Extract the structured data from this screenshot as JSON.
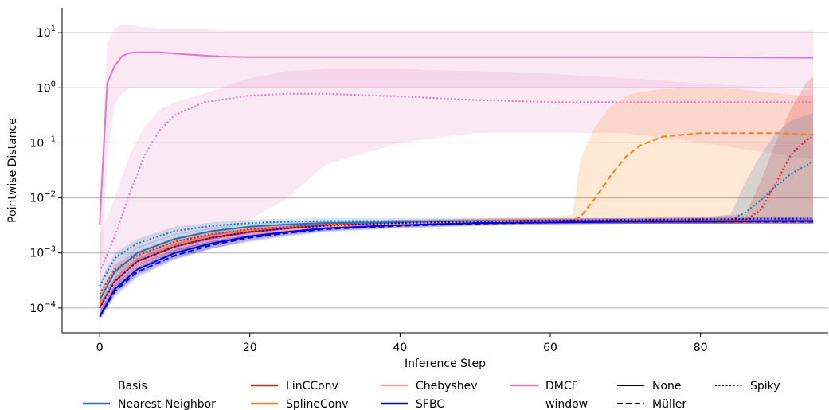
{
  "chart_data": {
    "type": "line",
    "xlabel": "Inference Step",
    "ylabel": "Pointwise Distance",
    "xlim": [
      -5,
      97
    ],
    "ylim_log10": [
      -4.45,
      1.45
    ],
    "yscale": "log",
    "x_ticks": [
      "0",
      "20",
      "40",
      "60",
      "80"
    ],
    "x_tick_values": [
      0,
      20,
      40,
      60,
      80
    ],
    "y_ticks": [
      {
        "exp": -4,
        "base": "10",
        "sup": "−4"
      },
      {
        "exp": -3,
        "base": "10",
        "sup": "−3"
      },
      {
        "exp": -2,
        "base": "10",
        "sup": "−2"
      },
      {
        "exp": -1,
        "base": "10",
        "sup": "−1"
      },
      {
        "exp": 0,
        "base": "10",
        "sup": "0"
      },
      {
        "exp": 1,
        "base": "10",
        "sup": "1"
      }
    ],
    "grid": "horizontal",
    "legend": {
      "position": "bottom",
      "title": "Basis",
      "items": [
        "Nearest Neighbor",
        "LinCConv",
        "SplineConv",
        "Chebyshev",
        "SFBC",
        "DMCF",
        "window",
        "None",
        "Müller",
        "Spiky"
      ]
    },
    "colors": {
      "Nearest Neighbor": "#1f77b4",
      "LinCConv": "#e31a1c",
      "SplineConv": "#ff7f0e",
      "Chebyshev": "#f4a3a8",
      "SFBC": "#0000e6",
      "DMCF": "#e377c2",
      "legend_window": "#000000"
    },
    "series": [
      {
        "basis": "DMCF",
        "window": "None",
        "color": "#e377c2",
        "x": [
          0,
          1,
          2,
          3,
          4,
          5,
          8,
          12,
          16,
          20,
          30,
          40,
          50,
          60,
          70,
          80,
          95
        ],
        "y": [
          0.0033,
          1.2,
          2.5,
          3.8,
          4.3,
          4.4,
          4.4,
          4.0,
          3.7,
          3.6,
          3.6,
          3.6,
          3.6,
          3.6,
          3.6,
          3.6,
          3.5
        ],
        "band_low": [
          0.0001,
          0.05,
          0.5,
          0.8,
          1.0,
          1.0,
          1.0,
          1.0,
          1.0,
          1.0,
          1.0,
          1.0,
          1.0,
          1.0,
          1.0,
          1.0,
          1.0
        ],
        "band_high": [
          0.01,
          6,
          12,
          14,
          14,
          13,
          12,
          12,
          11,
          11,
          11,
          11,
          11,
          11,
          11,
          11,
          11
        ]
      },
      {
        "basis": "DMCF",
        "window": "Spiky",
        "color": "#e377c2",
        "x": [
          0,
          2,
          4,
          6,
          8,
          10,
          14,
          20,
          25,
          30,
          40,
          50,
          60,
          70,
          80,
          95
        ],
        "y": [
          0.00045,
          0.002,
          0.012,
          0.06,
          0.17,
          0.32,
          0.55,
          0.72,
          0.78,
          0.78,
          0.7,
          0.6,
          0.55,
          0.55,
          0.55,
          0.55
        ],
        "band_low": [
          0.0001,
          0.0003,
          0.0006,
          0.0009,
          0.0012,
          0.0015,
          0.002,
          0.004,
          0.01,
          0.04,
          0.1,
          0.15,
          0.15,
          0.15,
          0.1,
          0.05
        ],
        "band_high": [
          0.002,
          0.01,
          0.06,
          0.2,
          0.4,
          0.55,
          0.8,
          1.5,
          2.0,
          2.2,
          2.2,
          2.0,
          1.8,
          1.5,
          1.2,
          0.9
        ]
      },
      {
        "basis": "SplineConv",
        "window": "Müller",
        "color": "#ff7f0e",
        "x": [
          0,
          2,
          5,
          10,
          15,
          20,
          30,
          40,
          50,
          60,
          63,
          64,
          66,
          68,
          70,
          72,
          75,
          80,
          85,
          90,
          95
        ],
        "y": [
          0.00012,
          0.0003,
          0.0007,
          0.0014,
          0.002,
          0.0026,
          0.0032,
          0.0036,
          0.0038,
          0.004,
          0.004,
          0.0045,
          0.01,
          0.025,
          0.055,
          0.09,
          0.13,
          0.15,
          0.15,
          0.15,
          0.14
        ],
        "band_low": [
          0.0001,
          0.0002,
          0.0005,
          0.001,
          0.0015,
          0.002,
          0.0028,
          0.0032,
          0.0034,
          0.0035,
          0.0035,
          0.0035,
          0.0035,
          0.0035,
          0.0035,
          0.0035,
          0.0035,
          0.0035,
          0.0035,
          0.0035,
          0.0035
        ],
        "band_high": [
          0.00015,
          0.0004,
          0.0009,
          0.0018,
          0.0025,
          0.003,
          0.0036,
          0.004,
          0.0042,
          0.0045,
          0.005,
          0.05,
          0.2,
          0.45,
          0.7,
          0.85,
          0.95,
          1.0,
          0.95,
          0.8,
          0.7
        ]
      },
      {
        "basis": "LinCConv",
        "window": "Spiky",
        "color": "#e31a1c",
        "x": [
          0,
          2,
          5,
          10,
          15,
          20,
          30,
          40,
          50,
          60,
          70,
          80,
          86,
          88,
          90,
          92,
          94,
          95
        ],
        "y": [
          0.00018,
          0.0005,
          0.0009,
          0.0016,
          0.0022,
          0.0027,
          0.0033,
          0.0036,
          0.0038,
          0.0039,
          0.0039,
          0.004,
          0.004,
          0.006,
          0.018,
          0.06,
          0.11,
          0.13
        ],
        "band_low": [
          0.00015,
          0.0004,
          0.0007,
          0.0013,
          0.0018,
          0.0022,
          0.0029,
          0.0032,
          0.0034,
          0.0035,
          0.0035,
          0.0035,
          0.0035,
          0.0035,
          0.0035,
          0.0035,
          0.0035,
          0.0035
        ],
        "band_high": [
          0.0002,
          0.0006,
          0.0011,
          0.0019,
          0.0026,
          0.0031,
          0.0037,
          0.004,
          0.0042,
          0.0043,
          0.0043,
          0.0045,
          0.005,
          0.02,
          0.1,
          0.4,
          1.2,
          1.6
        ]
      },
      {
        "basis": "Nearest Neighbor",
        "window": "Spiky",
        "color": "#1f77b4",
        "x": [
          0,
          2,
          5,
          10,
          15,
          20,
          25,
          30,
          40,
          50,
          60,
          70,
          80,
          84,
          86,
          88,
          90,
          92,
          95
        ],
        "y": [
          0.00025,
          0.0008,
          0.0015,
          0.0025,
          0.0031,
          0.0035,
          0.0037,
          0.0038,
          0.0038,
          0.0038,
          0.0038,
          0.0038,
          0.0039,
          0.004,
          0.0055,
          0.009,
          0.016,
          0.027,
          0.046
        ],
        "band_low": [
          0.0002,
          0.0006,
          0.0012,
          0.0021,
          0.0027,
          0.0031,
          0.0033,
          0.0034,
          0.0034,
          0.0034,
          0.0034,
          0.0034,
          0.0034,
          0.0034,
          0.0035,
          0.0035,
          0.0035,
          0.0035,
          0.0035
        ],
        "band_high": [
          0.0003,
          0.001,
          0.0018,
          0.003,
          0.0036,
          0.004,
          0.0042,
          0.0043,
          0.0043,
          0.0043,
          0.0043,
          0.0043,
          0.0044,
          0.005,
          0.02,
          0.06,
          0.15,
          0.25,
          0.35
        ]
      },
      {
        "basis": "Nearest Neighbor",
        "window": "None",
        "color": "#1f77b4",
        "x": [
          0,
          2,
          5,
          10,
          15,
          20,
          25,
          30,
          40,
          50,
          60,
          70,
          80,
          90,
          95
        ],
        "y": [
          0.00014,
          0.00045,
          0.001,
          0.0018,
          0.0025,
          0.003,
          0.0033,
          0.0035,
          0.0036,
          0.0037,
          0.0037,
          0.0037,
          0.0037,
          0.0037,
          0.0037
        ],
        "band_low": [
          0.0001,
          0.00035,
          0.0008,
          0.0015,
          0.0021,
          0.0026,
          0.003,
          0.0032,
          0.0033,
          0.0034,
          0.0034,
          0.0034,
          0.0034,
          0.0034,
          0.0034
        ],
        "band_high": [
          0.00018,
          0.0006,
          0.0013,
          0.0022,
          0.0029,
          0.0034,
          0.0037,
          0.0039,
          0.004,
          0.004,
          0.004,
          0.004,
          0.004,
          0.004,
          0.004
        ]
      },
      {
        "basis": "LinCConv",
        "window": "None",
        "color": "#e31a1c",
        "x": [
          0,
          2,
          5,
          10,
          15,
          20,
          25,
          30,
          40,
          50,
          60,
          70,
          80,
          90,
          95
        ],
        "y": [
          0.0001,
          0.0003,
          0.0007,
          0.0013,
          0.0019,
          0.0024,
          0.0028,
          0.0031,
          0.0034,
          0.0036,
          0.0037,
          0.0037,
          0.0037,
          0.0037,
          0.0037
        ],
        "band_low": [
          8e-05,
          0.00025,
          0.0006,
          0.0011,
          0.0016,
          0.0021,
          0.0025,
          0.0028,
          0.0031,
          0.0033,
          0.0034,
          0.0034,
          0.0034,
          0.0034,
          0.0034
        ],
        "band_high": [
          0.00012,
          0.00036,
          0.0008,
          0.0015,
          0.0022,
          0.0027,
          0.0031,
          0.0034,
          0.0037,
          0.0039,
          0.004,
          0.004,
          0.004,
          0.004,
          0.004
        ]
      },
      {
        "basis": "Chebyshev",
        "window": "None",
        "color": "#f4a3a8",
        "x": [
          0,
          2,
          5,
          10,
          15,
          20,
          25,
          30,
          40,
          50,
          60,
          70,
          80,
          90,
          95
        ],
        "y": [
          9e-05,
          0.00028,
          0.00065,
          0.0012,
          0.0017,
          0.0022,
          0.0026,
          0.003,
          0.0034,
          0.0036,
          0.0037,
          0.0037,
          0.0037,
          0.0037,
          0.0037
        ],
        "band_low": [
          7e-05,
          0.00022,
          0.0005,
          0.001,
          0.0014,
          0.0019,
          0.0023,
          0.0027,
          0.0031,
          0.0033,
          0.0034,
          0.0034,
          0.0034,
          0.0034,
          0.0034
        ],
        "band_high": [
          0.00011,
          0.00034,
          0.0008,
          0.0014,
          0.002,
          0.0025,
          0.0029,
          0.0033,
          0.0037,
          0.0039,
          0.004,
          0.004,
          0.004,
          0.004,
          0.004
        ]
      },
      {
        "basis": "SFBC",
        "window": "None",
        "color": "#0000e6",
        "x": [
          0,
          2,
          5,
          10,
          15,
          20,
          25,
          30,
          40,
          50,
          60,
          70,
          80,
          90,
          95
        ],
        "y": [
          7e-05,
          0.00022,
          0.0005,
          0.001,
          0.0015,
          0.002,
          0.0024,
          0.0028,
          0.0032,
          0.0035,
          0.0036,
          0.0037,
          0.0037,
          0.0038,
          0.0038
        ],
        "band_low": [
          6e-05,
          0.00018,
          0.0004,
          0.0008,
          0.0012,
          0.0017,
          0.0021,
          0.0025,
          0.0029,
          0.0032,
          0.0033,
          0.0034,
          0.0034,
          0.0035,
          0.0035
        ],
        "band_high": [
          9e-05,
          0.00027,
          0.0006,
          0.0012,
          0.0018,
          0.0023,
          0.0027,
          0.0031,
          0.0035,
          0.0038,
          0.0039,
          0.004,
          0.004,
          0.0041,
          0.0041
        ]
      },
      {
        "basis": "SFBC",
        "window": "Müller",
        "color": "#0000e6",
        "x": [
          0,
          2,
          5,
          10,
          15,
          20,
          25,
          30,
          40,
          50,
          60,
          70,
          80,
          90,
          95
        ],
        "y": [
          7e-05,
          0.0002,
          0.00045,
          0.0009,
          0.0014,
          0.0019,
          0.0023,
          0.0027,
          0.0031,
          0.0034,
          0.0036,
          0.0037,
          0.0037,
          0.0037,
          0.0037
        ],
        "band_low": [
          6e-05,
          0.00016,
          0.00036,
          0.00075,
          0.0012,
          0.0016,
          0.002,
          0.0024,
          0.0028,
          0.0031,
          0.0033,
          0.0034,
          0.0034,
          0.0034,
          0.0034
        ],
        "band_high": [
          9e-05,
          0.00025,
          0.00055,
          0.0011,
          0.0017,
          0.0022,
          0.0026,
          0.003,
          0.0034,
          0.0037,
          0.0039,
          0.004,
          0.004,
          0.004,
          0.004
        ]
      },
      {
        "basis": "SFBC",
        "window": "Spiky",
        "color": "#0000e6",
        "x": [
          0,
          2,
          5,
          10,
          15,
          20,
          25,
          30,
          40,
          50,
          60,
          70,
          80,
          90,
          95
        ],
        "y": [
          0.0001,
          0.0003,
          0.0007,
          0.0013,
          0.0019,
          0.0024,
          0.0028,
          0.0031,
          0.0035,
          0.0037,
          0.0039,
          0.004,
          0.0041,
          0.0042,
          0.0042
        ],
        "band_low": [
          8e-05,
          0.00025,
          0.00058,
          0.0011,
          0.0016,
          0.0021,
          0.0025,
          0.0028,
          0.0032,
          0.0034,
          0.0036,
          0.0037,
          0.0038,
          0.0039,
          0.0039
        ],
        "band_high": [
          0.00012,
          0.00036,
          0.0008,
          0.0015,
          0.0022,
          0.0027,
          0.0031,
          0.0034,
          0.0038,
          0.004,
          0.0042,
          0.0043,
          0.0044,
          0.0045,
          0.0045
        ]
      }
    ]
  }
}
